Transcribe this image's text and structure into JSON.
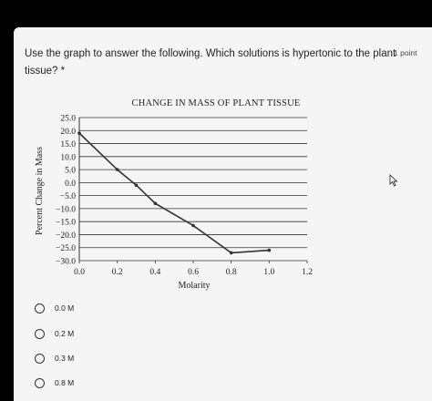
{
  "question": {
    "text": "Use the graph to answer the following. Which solutions is hypertonic to the plant tissue? *",
    "points": "1 point"
  },
  "chart_data": {
    "type": "line",
    "title": "CHANGE IN MASS OF PLANT TISSUE",
    "xlabel": "Molarity",
    "ylabel": "Percent Change in Mass",
    "xlim": [
      0.0,
      1.2
    ],
    "ylim": [
      -30.0,
      25.0
    ],
    "x_ticks": [
      "0.0",
      "0.2",
      "0.4",
      "0.6",
      "0.8",
      "1.0",
      "1.2"
    ],
    "y_ticks": [
      "25.0",
      "20.0",
      "15.0",
      "10.0",
      "5.0",
      "0.0",
      "-5.0",
      "-10.0",
      "-15.0",
      "-20.0",
      "-25.0",
      "-30.0"
    ],
    "grid": "horizontal",
    "series": [
      {
        "x": [
          0.0,
          0.2,
          0.3,
          0.4,
          0.6,
          0.8,
          1.0
        ],
        "y": [
          19.0,
          5.0,
          -1.0,
          -8.0,
          -16.5,
          -27.0,
          -26.0
        ]
      }
    ]
  },
  "options": [
    {
      "label": "0.0 M"
    },
    {
      "label": "0.2 M"
    },
    {
      "label": "0.3 M"
    },
    {
      "label": "0.8 M"
    }
  ],
  "colors": {
    "line": "#333333",
    "background": "#f5f5f5",
    "page": "#000000"
  },
  "icons": {
    "cursor": "mouse-pointer-icon"
  }
}
